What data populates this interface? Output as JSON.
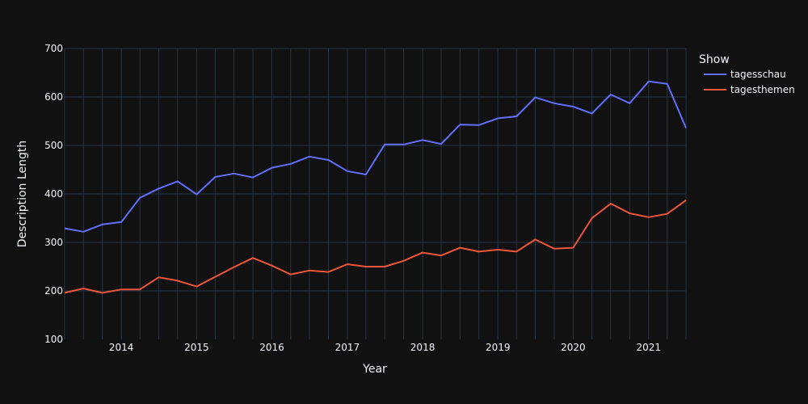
{
  "chart_data": {
    "type": "line",
    "xlabel": "Year",
    "ylabel": "Description Length",
    "ylim": [
      100,
      700
    ],
    "yticks": [
      100,
      200,
      300,
      400,
      500,
      600,
      700
    ],
    "xlim": [
      "2013-04-01",
      "2021-07-01"
    ],
    "xticks": [
      {
        "date": "2014-01-01",
        "label": "2014"
      },
      {
        "date": "2015-01-01",
        "label": "2015"
      },
      {
        "date": "2016-01-01",
        "label": "2016"
      },
      {
        "date": "2017-01-01",
        "label": "2017"
      },
      {
        "date": "2018-01-01",
        "label": "2018"
      },
      {
        "date": "2019-01-01",
        "label": "2019"
      },
      {
        "date": "2020-01-01",
        "label": "2020"
      },
      {
        "date": "2021-01-01",
        "label": "2021"
      }
    ],
    "x": [
      "2013-04-01",
      "2013-07-01",
      "2013-10-01",
      "2014-01-01",
      "2014-04-01",
      "2014-07-01",
      "2014-10-01",
      "2015-01-01",
      "2015-04-01",
      "2015-07-01",
      "2015-10-01",
      "2016-01-01",
      "2016-04-01",
      "2016-07-01",
      "2016-10-01",
      "2017-01-01",
      "2017-04-01",
      "2017-07-01",
      "2017-10-01",
      "2018-01-01",
      "2018-04-01",
      "2018-07-01",
      "2018-10-01",
      "2019-01-01",
      "2019-04-01",
      "2019-07-01",
      "2019-10-01",
      "2020-01-01",
      "2020-04-01",
      "2020-07-01",
      "2020-10-01",
      "2021-01-01",
      "2021-04-01",
      "2021-07-01"
    ],
    "grid": true,
    "legend_title": "Show",
    "legend_position": "top-right",
    "series": [
      {
        "name": "tagesschau",
        "color": "#636efa",
        "values": [
          329,
          322,
          337,
          342,
          392,
          411,
          426,
          399,
          435,
          442,
          434,
          454,
          462,
          477,
          470,
          447,
          440,
          502,
          502,
          511,
          503,
          543,
          542,
          556,
          560,
          599,
          587,
          580,
          566,
          605,
          587,
          632,
          627,
          536
        ]
      },
      {
        "name": "tagesthemen",
        "color": "#ef553b",
        "values": [
          196,
          205,
          196,
          203,
          203,
          228,
          221,
          209,
          229,
          249,
          268,
          252,
          234,
          242,
          239,
          255,
          250,
          250,
          262,
          279,
          273,
          289,
          281,
          285,
          281,
          306,
          287,
          289,
          350,
          380,
          360,
          352,
          359,
          387
        ]
      }
    ]
  }
}
